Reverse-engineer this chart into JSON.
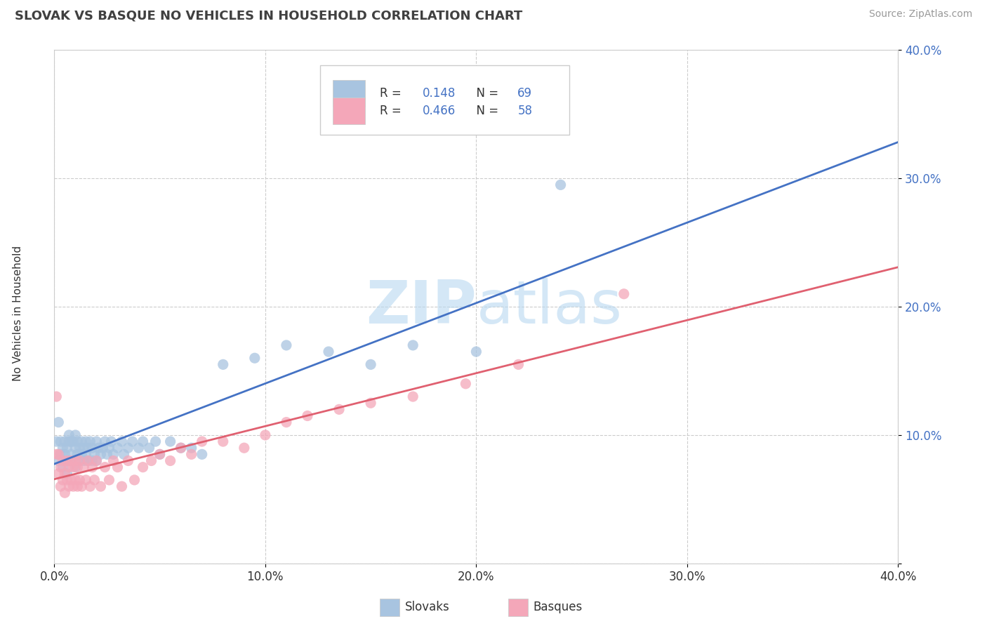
{
  "title": "SLOVAK VS BASQUE NO VEHICLES IN HOUSEHOLD CORRELATION CHART",
  "source": "Source: ZipAtlas.com",
  "ylabel": "No Vehicles in Household",
  "xlim": [
    0.0,
    0.4
  ],
  "ylim": [
    0.0,
    0.4
  ],
  "slovak_color": "#a8c4e0",
  "basque_color": "#f4a7b9",
  "slovak_line_color": "#4472c4",
  "basque_line_color": "#e06070",
  "watermark_zip": "ZIP",
  "watermark_atlas": "atlas",
  "slovak_R": 0.148,
  "basque_R": 0.466,
  "slovak_N": 69,
  "basque_N": 58,
  "slovak_x": [
    0.001,
    0.002,
    0.002,
    0.003,
    0.003,
    0.004,
    0.004,
    0.005,
    0.005,
    0.006,
    0.006,
    0.007,
    0.007,
    0.007,
    0.008,
    0.008,
    0.009,
    0.009,
    0.01,
    0.01,
    0.01,
    0.011,
    0.011,
    0.012,
    0.012,
    0.013,
    0.013,
    0.014,
    0.014,
    0.015,
    0.015,
    0.016,
    0.016,
    0.017,
    0.018,
    0.018,
    0.019,
    0.02,
    0.02,
    0.021,
    0.022,
    0.023,
    0.024,
    0.025,
    0.026,
    0.027,
    0.028,
    0.03,
    0.032,
    0.033,
    0.035,
    0.037,
    0.04,
    0.042,
    0.045,
    0.048,
    0.05,
    0.055,
    0.06,
    0.065,
    0.07,
    0.08,
    0.095,
    0.11,
    0.13,
    0.15,
    0.17,
    0.2,
    0.24
  ],
  "slovak_y": [
    0.095,
    0.08,
    0.11,
    0.085,
    0.095,
    0.075,
    0.09,
    0.085,
    0.095,
    0.07,
    0.09,
    0.08,
    0.095,
    0.1,
    0.085,
    0.095,
    0.08,
    0.095,
    0.075,
    0.09,
    0.1,
    0.085,
    0.095,
    0.08,
    0.09,
    0.085,
    0.095,
    0.08,
    0.09,
    0.085,
    0.095,
    0.08,
    0.09,
    0.095,
    0.08,
    0.09,
    0.085,
    0.095,
    0.08,
    0.09,
    0.085,
    0.09,
    0.095,
    0.085,
    0.09,
    0.095,
    0.085,
    0.09,
    0.095,
    0.085,
    0.09,
    0.095,
    0.09,
    0.095,
    0.09,
    0.095,
    0.085,
    0.095,
    0.09,
    0.09,
    0.085,
    0.155,
    0.16,
    0.17,
    0.165,
    0.155,
    0.17,
    0.165,
    0.295
  ],
  "basque_x": [
    0.001,
    0.001,
    0.002,
    0.002,
    0.003,
    0.003,
    0.004,
    0.004,
    0.005,
    0.005,
    0.006,
    0.006,
    0.007,
    0.007,
    0.008,
    0.008,
    0.009,
    0.009,
    0.01,
    0.01,
    0.011,
    0.011,
    0.012,
    0.012,
    0.013,
    0.014,
    0.015,
    0.016,
    0.017,
    0.018,
    0.019,
    0.02,
    0.022,
    0.024,
    0.026,
    0.028,
    0.03,
    0.032,
    0.035,
    0.038,
    0.042,
    0.046,
    0.05,
    0.055,
    0.06,
    0.065,
    0.07,
    0.08,
    0.09,
    0.1,
    0.11,
    0.12,
    0.135,
    0.15,
    0.17,
    0.195,
    0.22,
    0.27
  ],
  "basque_y": [
    0.13,
    0.085,
    0.07,
    0.085,
    0.06,
    0.075,
    0.065,
    0.08,
    0.055,
    0.07,
    0.065,
    0.08,
    0.06,
    0.075,
    0.065,
    0.08,
    0.06,
    0.075,
    0.065,
    0.08,
    0.06,
    0.075,
    0.065,
    0.08,
    0.06,
    0.075,
    0.065,
    0.08,
    0.06,
    0.075,
    0.065,
    0.08,
    0.06,
    0.075,
    0.065,
    0.08,
    0.075,
    0.06,
    0.08,
    0.065,
    0.075,
    0.08,
    0.085,
    0.08,
    0.09,
    0.085,
    0.095,
    0.095,
    0.09,
    0.1,
    0.11,
    0.115,
    0.12,
    0.125,
    0.13,
    0.14,
    0.155,
    0.21
  ]
}
